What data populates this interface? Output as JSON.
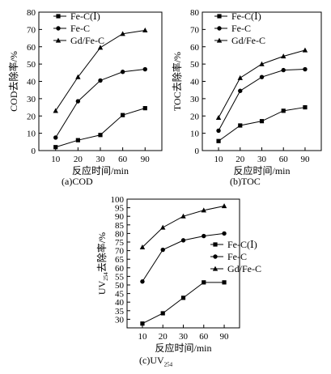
{
  "figure": {
    "captions": {
      "a": "(a)COD",
      "b": "(b)TOC",
      "c_main": "(c)UV",
      "c_sub": "254"
    }
  },
  "chart_data": [
    {
      "id": "a",
      "type": "line",
      "categories": [
        "10",
        "20",
        "30",
        "60",
        "90"
      ],
      "xlabel": "反应时间/min",
      "ylabel": "COD去除率/%",
      "ylabel_sub": "",
      "ylabel_suffix": "",
      "ylim": [
        0,
        80
      ],
      "yticks": [
        0,
        10,
        20,
        30,
        40,
        50,
        60,
        70,
        80
      ],
      "grid": false,
      "legend_position": "top-left",
      "series": [
        {
          "name": "Fe-C(Ⅰ)",
          "marker": "square",
          "values": [
            2,
            6,
            9,
            20.5,
            24.5
          ]
        },
        {
          "name": "Fe-C",
          "marker": "circle",
          "values": [
            7.5,
            28.5,
            40.5,
            45.5,
            47
          ]
        },
        {
          "name": "Gd/Fe-C",
          "marker": "triangle",
          "values": [
            23,
            42.5,
            59.5,
            67.5,
            69.5
          ]
        }
      ]
    },
    {
      "id": "b",
      "type": "line",
      "categories": [
        "10",
        "20",
        "30",
        "60",
        "90"
      ],
      "xlabel": "反应时间/min",
      "ylabel": "TOC去除率/%",
      "ylabel_sub": "",
      "ylabel_suffix": "",
      "ylim": [
        0,
        80
      ],
      "yticks": [
        0,
        10,
        20,
        30,
        40,
        50,
        60,
        70,
        80
      ],
      "grid": false,
      "legend_position": "top-left",
      "series": [
        {
          "name": "Fe-C(Ⅰ)",
          "marker": "square",
          "values": [
            5.5,
            14.5,
            17,
            23,
            25
          ]
        },
        {
          "name": "Fe-C",
          "marker": "circle",
          "values": [
            11.5,
            34.5,
            42.5,
            46.5,
            47
          ]
        },
        {
          "name": "Gd/Fe-C",
          "marker": "triangle",
          "values": [
            19,
            42,
            50,
            54.5,
            58
          ]
        }
      ]
    },
    {
      "id": "c",
      "type": "line",
      "categories": [
        "10",
        "20",
        "30",
        "60",
        "90"
      ],
      "xlabel": "反应时间/min",
      "ylabel": "UV",
      "ylabel_sub": "254",
      "ylabel_suffix": "去除率/%",
      "ylim": [
        25,
        100
      ],
      "yticks": [
        30,
        35,
        40,
        45,
        50,
        55,
        60,
        65,
        70,
        75,
        80,
        85,
        90,
        95,
        100
      ],
      "grid": false,
      "legend_position": "right",
      "series": [
        {
          "name": "Fe-C(Ⅰ)",
          "marker": "square",
          "values": [
            27.5,
            33.5,
            42.5,
            51.5,
            51.5
          ]
        },
        {
          "name": "Fe-C",
          "marker": "circle",
          "values": [
            52,
            70.5,
            76,
            78.5,
            80
          ]
        },
        {
          "name": "Gd/Fe-C",
          "marker": "triangle",
          "values": [
            72,
            83.5,
            90,
            93.5,
            96
          ]
        }
      ]
    }
  ]
}
